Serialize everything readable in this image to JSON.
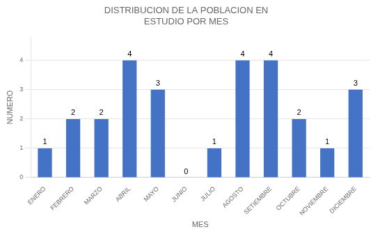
{
  "chart_data": {
    "type": "bar",
    "title": "DISTRIBUCION DE LA POBLACION EN\nESTUDIO POR MES",
    "x_label": "MES",
    "y_label": "NUMERO",
    "categories": [
      "ENERO",
      "FEBRERO",
      "MARZO",
      "ABRIL",
      "MAYO",
      "JUNIO",
      "JULIO",
      "AGOSTO",
      "SETIEMBRE",
      "OCTUBRE",
      "NOVIEMBRE",
      "DICIEMBRE"
    ],
    "values": [
      1,
      2,
      2,
      4,
      3,
      0,
      1,
      4,
      4,
      2,
      1,
      3
    ],
    "color": "#4472C4",
    "ylim": [
      0,
      4.8
    ],
    "yticks": [
      0,
      1,
      2,
      3,
      4
    ],
    "grid": true,
    "data_labels": true
  }
}
